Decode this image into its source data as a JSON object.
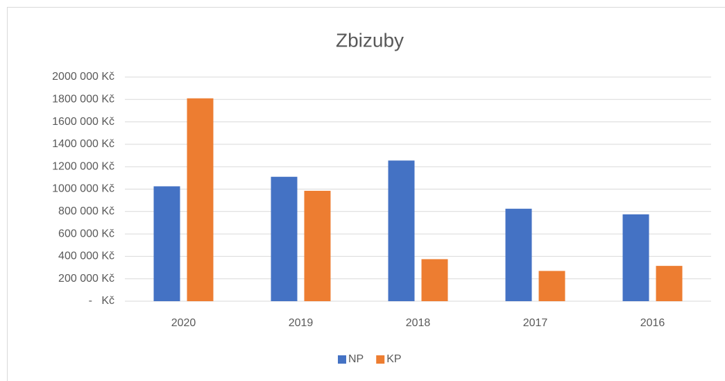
{
  "chart_data": {
    "type": "bar",
    "title": "Zbizuby",
    "categories": [
      "2020",
      "2019",
      "2018",
      "2017",
      "2016"
    ],
    "series": [
      {
        "name": "NP",
        "color": "#4472c4",
        "values": [
          1025000,
          1110000,
          1255000,
          825000,
          775000
        ]
      },
      {
        "name": "KP",
        "color": "#ed7d31",
        "values": [
          1810000,
          985000,
          375000,
          270000,
          315000
        ]
      }
    ],
    "ylim": [
      0,
      2000000
    ],
    "yticks": [
      {
        "value": 0,
        "label": "-   Kč"
      },
      {
        "value": 200000,
        "label": "200 000 Kč"
      },
      {
        "value": 400000,
        "label": "400 000 Kč"
      },
      {
        "value": 600000,
        "label": "600 000 Kč"
      },
      {
        "value": 800000,
        "label": "800 000 Kč"
      },
      {
        "value": 1000000,
        "label": "1000 000 Kč"
      },
      {
        "value": 1200000,
        "label": "1200 000 Kč"
      },
      {
        "value": 1400000,
        "label": "1400 000 Kč"
      },
      {
        "value": 1600000,
        "label": "1600 000 Kč"
      },
      {
        "value": 1800000,
        "label": "1800 000 Kč"
      },
      {
        "value": 2000000,
        "label": "2000 000 Kč"
      }
    ],
    "grid": true,
    "legend": "bottom"
  }
}
